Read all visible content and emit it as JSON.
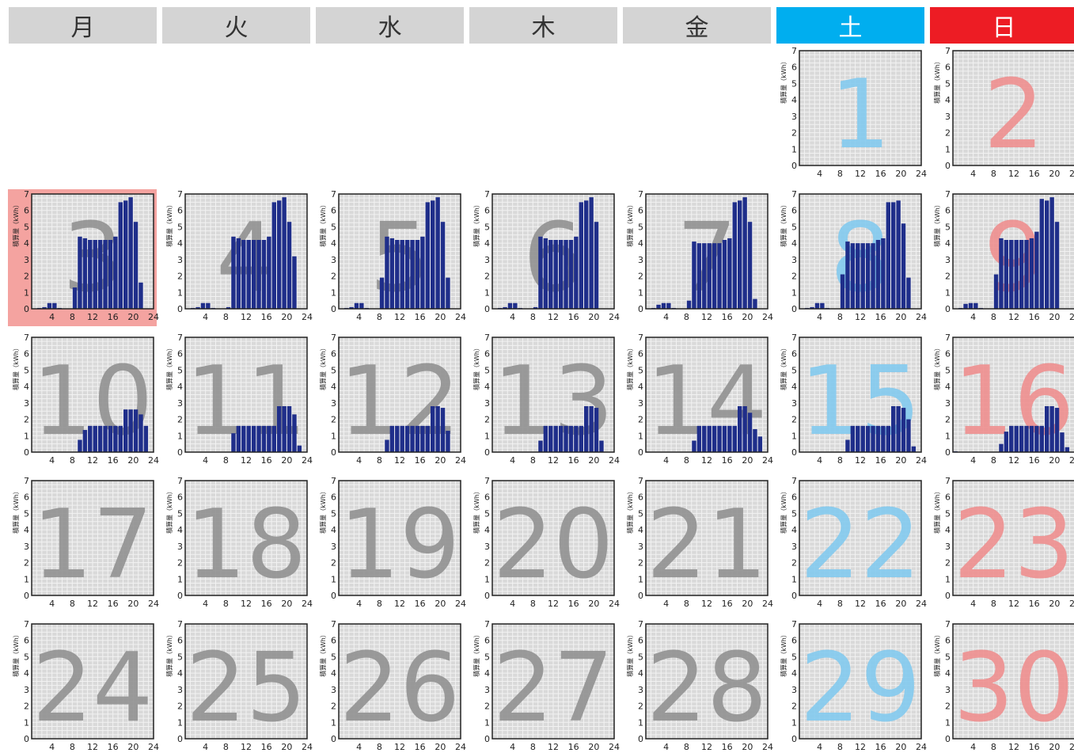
{
  "weekdays": [
    {
      "label": "月",
      "kind": "weekday"
    },
    {
      "label": "火",
      "kind": "weekday"
    },
    {
      "label": "水",
      "kind": "weekday"
    },
    {
      "label": "木",
      "kind": "weekday"
    },
    {
      "label": "金",
      "kind": "weekday"
    },
    {
      "label": "土",
      "kind": "saturday"
    },
    {
      "label": "日",
      "kind": "sunday"
    }
  ],
  "colors": {
    "header_weekday_bg": "#d4d4d4",
    "header_saturday_bg": "#00aeef",
    "header_sunday_bg": "#ed1c24",
    "header_text_weekday": "#333333",
    "header_text_holiday": "#ffffff",
    "plot_bg": "#d9d9d9",
    "grid_line": "#f2f2f2",
    "bar": "#1f2e8a",
    "weekday_num": "#8c8c8c",
    "saturday_num": "#7cc8ee",
    "sunday_num": "#ee8a8a",
    "today_highlight": "#f4a3a0",
    "axis": "#222222"
  },
  "chart_data": {
    "type": "bar",
    "layout": "monthly-calendar",
    "first_weekday_index": 5,
    "today": 3,
    "ylabel": "積算量（kWh）",
    "ylim": [
      0,
      7
    ],
    "yticks": [
      0,
      1,
      2,
      3,
      4,
      5,
      6,
      7
    ],
    "xlim": [
      0,
      24
    ],
    "xticks": [
      4,
      8,
      12,
      16,
      20,
      24
    ],
    "x_hours": [
      1,
      2,
      3,
      4,
      5,
      6,
      7,
      8,
      9,
      10,
      11,
      12,
      13,
      14,
      15,
      16,
      17,
      18,
      19,
      20,
      21,
      22,
      23,
      24
    ],
    "grid": true,
    "days": [
      {
        "day": 1,
        "kind": "saturday",
        "values": []
      },
      {
        "day": 2,
        "kind": "sunday",
        "values": []
      },
      {
        "day": 3,
        "kind": "weekday",
        "values": [
          0,
          0.05,
          0.1,
          0.35,
          0.35,
          0.05,
          0,
          0,
          1.3,
          4.4,
          4.3,
          4.2,
          4.2,
          4.2,
          4.2,
          4.2,
          4.4,
          6.5,
          6.6,
          6.8,
          5.3,
          1.6,
          0,
          0
        ]
      },
      {
        "day": 4,
        "kind": "weekday",
        "values": [
          0,
          0.05,
          0.1,
          0.35,
          0.35,
          0.05,
          0,
          0,
          0.1,
          4.4,
          4.3,
          4.2,
          4.2,
          4.2,
          4.2,
          4.2,
          4.4,
          6.5,
          6.6,
          6.8,
          5.3,
          3.2,
          0,
          0
        ]
      },
      {
        "day": 5,
        "kind": "weekday",
        "values": [
          0,
          0.05,
          0.1,
          0.35,
          0.35,
          0.05,
          0,
          0,
          1.9,
          4.4,
          4.3,
          4.2,
          4.2,
          4.2,
          4.2,
          4.2,
          4.4,
          6.5,
          6.6,
          6.8,
          5.3,
          1.9,
          0,
          0
        ]
      },
      {
        "day": 6,
        "kind": "weekday",
        "values": [
          0,
          0.05,
          0.1,
          0.35,
          0.35,
          0.05,
          0,
          0,
          0.1,
          4.4,
          4.3,
          4.2,
          4.2,
          4.2,
          4.2,
          4.2,
          4.4,
          6.5,
          6.6,
          6.8,
          5.3,
          0,
          0,
          0
        ]
      },
      {
        "day": 7,
        "kind": "weekday",
        "values": [
          0,
          0.05,
          0.25,
          0.35,
          0.35,
          0.05,
          0,
          0,
          0.5,
          4.1,
          4.0,
          4.0,
          4.0,
          4.0,
          4.0,
          4.2,
          4.3,
          6.5,
          6.6,
          6.8,
          5.3,
          0.6,
          0,
          0
        ]
      },
      {
        "day": 8,
        "kind": "saturday",
        "values": [
          0,
          0.05,
          0.1,
          0.35,
          0.35,
          0.05,
          0,
          0,
          2.1,
          4.1,
          4.0,
          4.0,
          4.0,
          4.0,
          4.0,
          4.2,
          4.3,
          6.5,
          6.5,
          6.6,
          5.2,
          1.9,
          0,
          0
        ]
      },
      {
        "day": 9,
        "kind": "sunday",
        "values": [
          0,
          0.05,
          0.3,
          0.35,
          0.35,
          0.05,
          0,
          0,
          2.1,
          4.3,
          4.2,
          4.2,
          4.2,
          4.2,
          4.2,
          4.3,
          4.7,
          6.7,
          6.6,
          6.8,
          5.3,
          0,
          0,
          0
        ]
      },
      {
        "day": 10,
        "kind": "weekday",
        "values": [
          0,
          0,
          0,
          0,
          0,
          0,
          0,
          0,
          0,
          0.75,
          1.35,
          1.6,
          1.6,
          1.6,
          1.6,
          1.6,
          1.6,
          1.6,
          2.6,
          2.6,
          2.6,
          2.3,
          1.6,
          0
        ]
      },
      {
        "day": 11,
        "kind": "weekday",
        "values": [
          0,
          0,
          0,
          0,
          0,
          0,
          0,
          0,
          0,
          1.15,
          1.6,
          1.6,
          1.6,
          1.6,
          1.6,
          1.6,
          1.6,
          1.6,
          2.8,
          2.8,
          2.8,
          2.3,
          0.4,
          0
        ]
      },
      {
        "day": 12,
        "kind": "weekday",
        "values": [
          0,
          0,
          0,
          0,
          0,
          0,
          0,
          0,
          0,
          0.75,
          1.6,
          1.6,
          1.6,
          1.6,
          1.6,
          1.6,
          1.6,
          1.6,
          2.8,
          2.8,
          2.7,
          1.3,
          0,
          0
        ]
      },
      {
        "day": 13,
        "kind": "weekday",
        "values": [
          0,
          0,
          0,
          0,
          0,
          0,
          0,
          0,
          0,
          0.7,
          1.6,
          1.6,
          1.6,
          1.6,
          1.6,
          1.6,
          1.6,
          1.6,
          2.8,
          2.8,
          2.7,
          0.7,
          0,
          0
        ]
      },
      {
        "day": 14,
        "kind": "weekday",
        "values": [
          0,
          0,
          0,
          0,
          0,
          0,
          0,
          0,
          0,
          0.7,
          1.6,
          1.6,
          1.6,
          1.6,
          1.6,
          1.6,
          1.6,
          1.6,
          2.8,
          2.8,
          2.4,
          1.4,
          0.95,
          0
        ]
      },
      {
        "day": 15,
        "kind": "saturday",
        "values": [
          0,
          0,
          0,
          0,
          0,
          0,
          0,
          0,
          0,
          0.75,
          1.6,
          1.6,
          1.6,
          1.6,
          1.6,
          1.6,
          1.6,
          1.6,
          2.8,
          2.8,
          2.7,
          2.0,
          0.35,
          0
        ]
      },
      {
        "day": 16,
        "kind": "sunday",
        "values": [
          0.05,
          0,
          0,
          0,
          0,
          0,
          0,
          0,
          0,
          0.5,
          1.25,
          1.6,
          1.6,
          1.6,
          1.6,
          1.6,
          1.6,
          1.6,
          2.8,
          2.8,
          2.7,
          1.2,
          0.3,
          0
        ]
      },
      {
        "day": 17,
        "kind": "weekday",
        "values": []
      },
      {
        "day": 18,
        "kind": "weekday",
        "values": []
      },
      {
        "day": 19,
        "kind": "weekday",
        "values": []
      },
      {
        "day": 20,
        "kind": "weekday",
        "values": []
      },
      {
        "day": 21,
        "kind": "weekday",
        "values": []
      },
      {
        "day": 22,
        "kind": "saturday",
        "values": []
      },
      {
        "day": 23,
        "kind": "sunday",
        "values": []
      },
      {
        "day": 24,
        "kind": "weekday",
        "values": []
      },
      {
        "day": 25,
        "kind": "weekday",
        "values": []
      },
      {
        "day": 26,
        "kind": "weekday",
        "values": []
      },
      {
        "day": 27,
        "kind": "weekday",
        "values": []
      },
      {
        "day": 28,
        "kind": "weekday",
        "values": []
      },
      {
        "day": 29,
        "kind": "saturday",
        "values": []
      },
      {
        "day": 30,
        "kind": "sunday",
        "values": []
      }
    ]
  }
}
